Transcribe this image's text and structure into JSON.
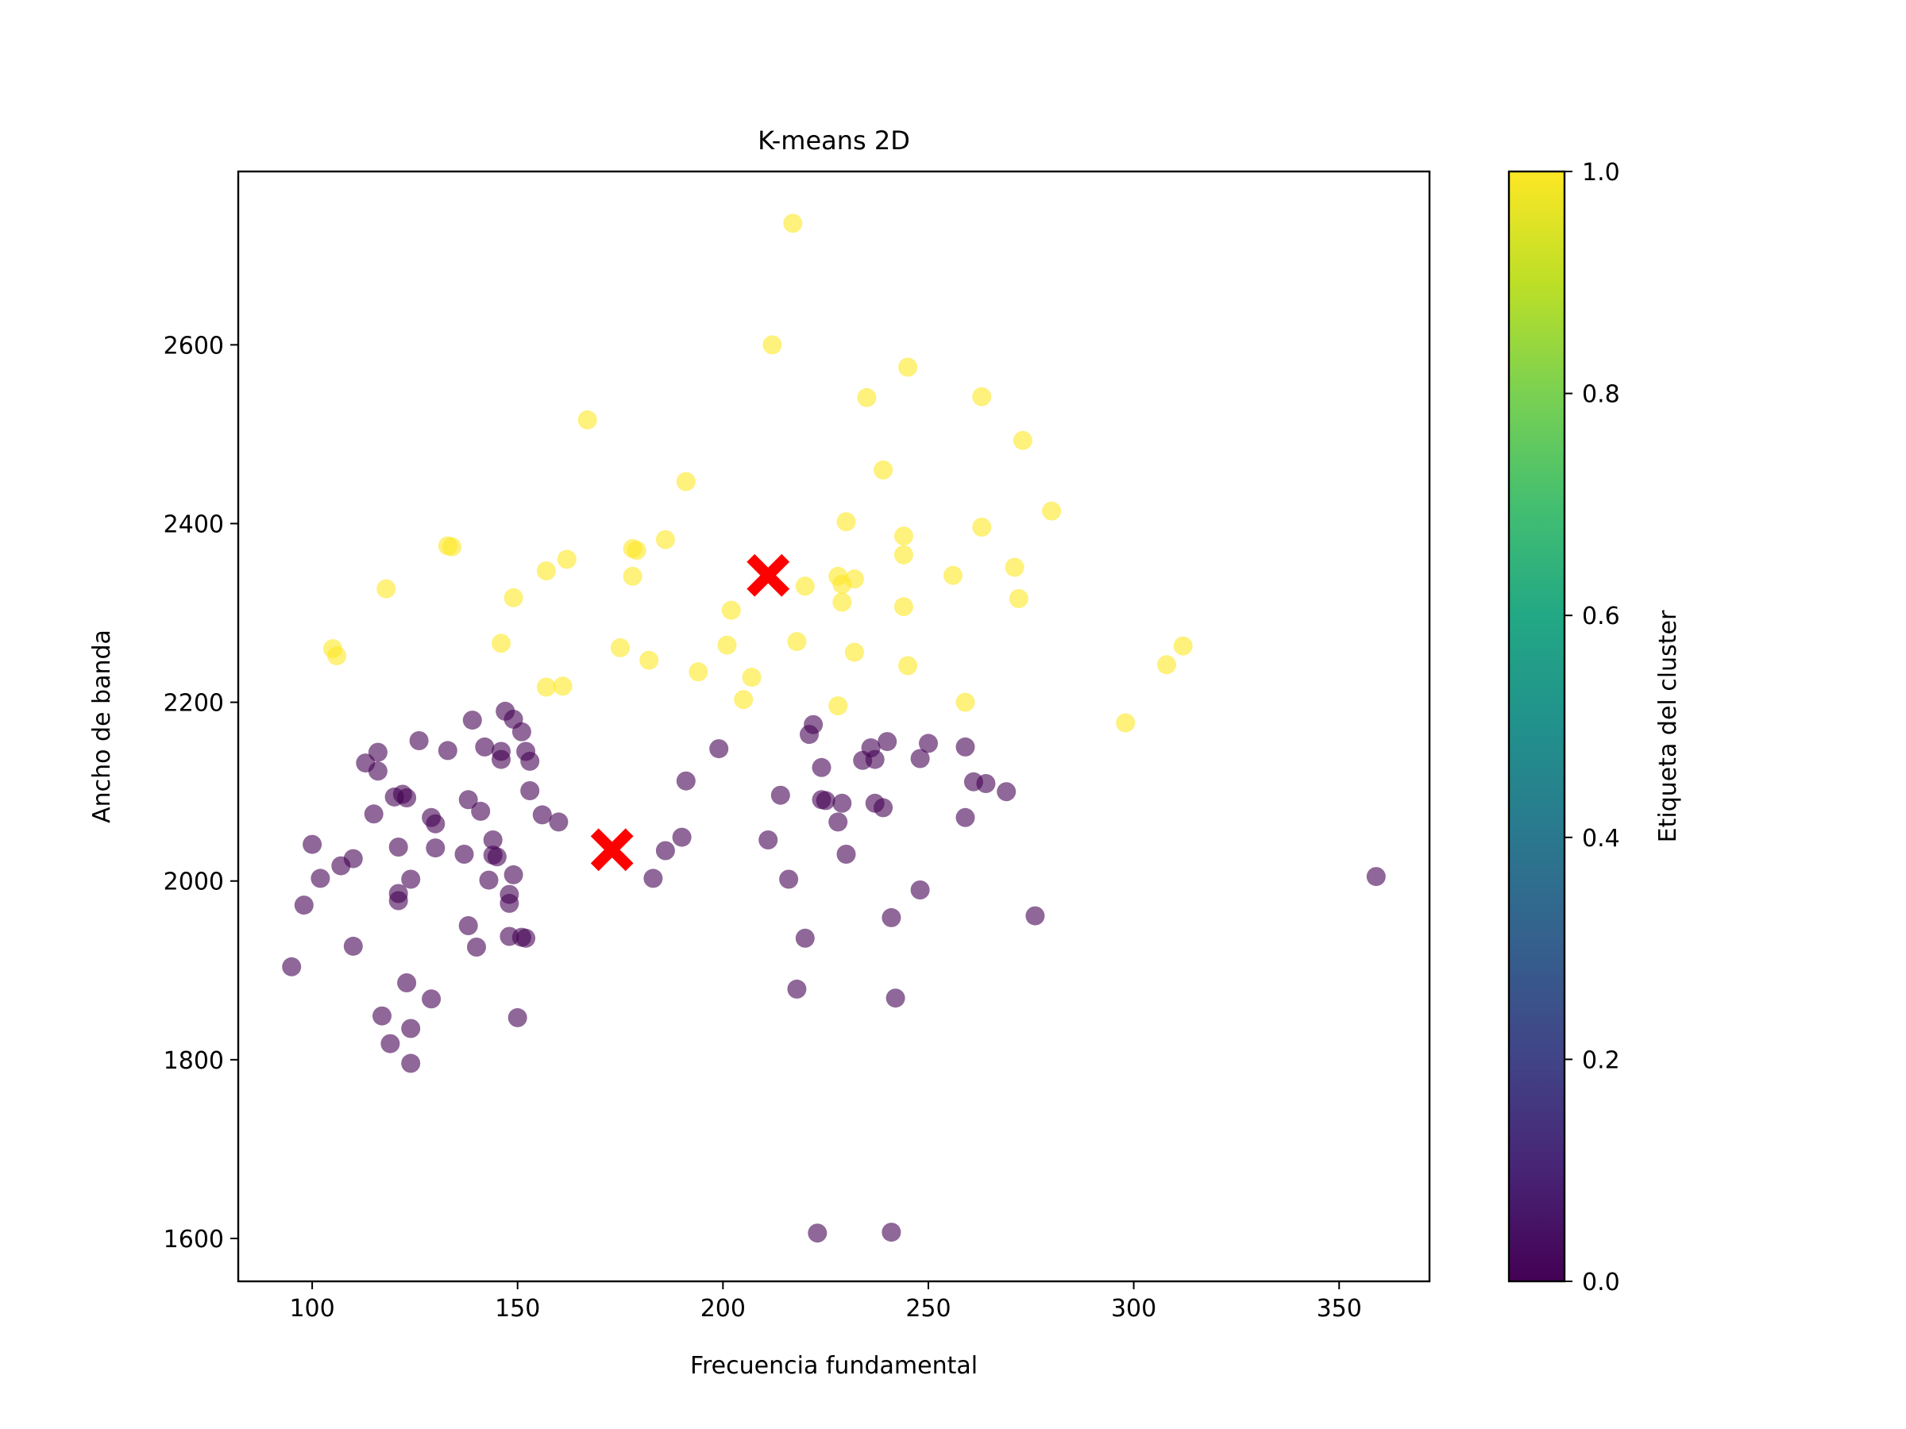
{
  "chart_data": {
    "type": "scatter",
    "title": "K-means 2D",
    "xlabel": "Frecuencia fundamental",
    "ylabel": "Ancho de banda",
    "xlim": [
      82,
      372
    ],
    "ylim": [
      1552,
      2794
    ],
    "xticks": [
      100,
      150,
      200,
      250,
      300,
      350
    ],
    "yticks": [
      1600,
      1800,
      2000,
      2200,
      2400,
      2600
    ],
    "grid": false,
    "legend": "none",
    "colorbar": {
      "label": "Etiqueta del cluster",
      "colormap": "viridis",
      "range": [
        0.0,
        1.0
      ],
      "ticks": [
        "0.0",
        "0.2",
        "0.4",
        "0.6",
        "0.8",
        "1.0"
      ]
    },
    "colors": {
      "cluster_0": "#440154",
      "cluster_1": "#fde725",
      "centroid": "#ff0000"
    },
    "series": [
      {
        "cluster": 0,
        "points": [
          [
            95,
            1904
          ],
          [
            98,
            1973
          ],
          [
            100,
            2041
          ],
          [
            102,
            2003
          ],
          [
            107,
            2017
          ],
          [
            110,
            2025
          ],
          [
            110,
            1927
          ],
          [
            113,
            2132
          ],
          [
            115,
            2075
          ],
          [
            116,
            2123
          ],
          [
            116,
            2144
          ],
          [
            117,
            1849
          ],
          [
            119,
            1818
          ],
          [
            120,
            2094
          ],
          [
            121,
            2038
          ],
          [
            121,
            1986
          ],
          [
            121,
            1978
          ],
          [
            122,
            2097
          ],
          [
            123,
            2093
          ],
          [
            123,
            1886
          ],
          [
            124,
            2002
          ],
          [
            124,
            1835
          ],
          [
            124,
            1796
          ],
          [
            126,
            2157
          ],
          [
            129,
            2071
          ],
          [
            129,
            1868
          ],
          [
            130,
            2064
          ],
          [
            130,
            2037
          ],
          [
            133,
            2146
          ],
          [
            137,
            2030
          ],
          [
            138,
            2091
          ],
          [
            138,
            1950
          ],
          [
            139,
            2180
          ],
          [
            140,
            1926
          ],
          [
            141,
            2078
          ],
          [
            142,
            2150
          ],
          [
            143,
            2001
          ],
          [
            144,
            2046
          ],
          [
            144,
            2029
          ],
          [
            145,
            2027
          ],
          [
            146,
            2145
          ],
          [
            146,
            2136
          ],
          [
            147,
            2190
          ],
          [
            148,
            1985
          ],
          [
            148,
            1975
          ],
          [
            148,
            1938
          ],
          [
            149,
            2007
          ],
          [
            149,
            2181
          ],
          [
            150,
            1847
          ],
          [
            151,
            2167
          ],
          [
            151,
            1937
          ],
          [
            152,
            1936
          ],
          [
            152,
            2145
          ],
          [
            153,
            2134
          ],
          [
            153,
            2101
          ],
          [
            156,
            2074
          ],
          [
            160,
            2066
          ],
          [
            183,
            2003
          ],
          [
            186,
            2034
          ],
          [
            190,
            2049
          ],
          [
            191,
            2112
          ],
          [
            199,
            2148
          ],
          [
            211,
            2046
          ],
          [
            214,
            2096
          ],
          [
            216,
            2002
          ],
          [
            218,
            1879
          ],
          [
            220,
            1936
          ],
          [
            221,
            2164
          ],
          [
            222,
            2175
          ],
          [
            224,
            2127
          ],
          [
            224,
            2091
          ],
          [
            225,
            2090
          ],
          [
            228,
            2066
          ],
          [
            229,
            2087
          ],
          [
            230,
            2030
          ],
          [
            234,
            2135
          ],
          [
            236,
            2149
          ],
          [
            237,
            2136
          ],
          [
            237,
            2087
          ],
          [
            239,
            2082
          ],
          [
            240,
            2156
          ],
          [
            241,
            1959
          ],
          [
            242,
            1869
          ],
          [
            248,
            2137
          ],
          [
            248,
            1990
          ],
          [
            250,
            2154
          ],
          [
            259,
            2071
          ],
          [
            259,
            2150
          ],
          [
            261,
            2111
          ],
          [
            264,
            2109
          ],
          [
            269,
            2100
          ],
          [
            276,
            1961
          ],
          [
            359,
            2005
          ],
          [
            223,
            1606
          ],
          [
            241,
            1607
          ]
        ]
      },
      {
        "cluster": 1,
        "points": [
          [
            105,
            2260
          ],
          [
            106,
            2252
          ],
          [
            118,
            2327
          ],
          [
            133,
            2375
          ],
          [
            134,
            2374
          ],
          [
            146,
            2266
          ],
          [
            149,
            2317
          ],
          [
            157,
            2347
          ],
          [
            157,
            2217
          ],
          [
            161,
            2218
          ],
          [
            162,
            2360
          ],
          [
            167,
            2516
          ],
          [
            175,
            2261
          ],
          [
            178,
            2341
          ],
          [
            178,
            2372
          ],
          [
            179,
            2370
          ],
          [
            182,
            2247
          ],
          [
            186,
            2382
          ],
          [
            191,
            2447
          ],
          [
            194,
            2234
          ],
          [
            201,
            2264
          ],
          [
            202,
            2303
          ],
          [
            205,
            2203
          ],
          [
            207,
            2228
          ],
          [
            212,
            2600
          ],
          [
            217,
            2736
          ],
          [
            218,
            2268
          ],
          [
            220,
            2330
          ],
          [
            228,
            2196
          ],
          [
            228,
            2341
          ],
          [
            229,
            2332
          ],
          [
            229,
            2312
          ],
          [
            230,
            2402
          ],
          [
            232,
            2256
          ],
          [
            232,
            2338
          ],
          [
            235,
            2541
          ],
          [
            239,
            2460
          ],
          [
            244,
            2307
          ],
          [
            244,
            2365
          ],
          [
            244,
            2386
          ],
          [
            245,
            2241
          ],
          [
            245,
            2575
          ],
          [
            256,
            2342
          ],
          [
            259,
            2200
          ],
          [
            263,
            2396
          ],
          [
            263,
            2542
          ],
          [
            271,
            2351
          ],
          [
            272,
            2316
          ],
          [
            273,
            2493
          ],
          [
            280,
            2414
          ],
          [
            298,
            2177
          ],
          [
            308,
            2242
          ],
          [
            312,
            2263
          ]
        ]
      }
    ],
    "centroids": [
      [
        173,
        2035
      ],
      [
        211,
        2342
      ]
    ]
  }
}
